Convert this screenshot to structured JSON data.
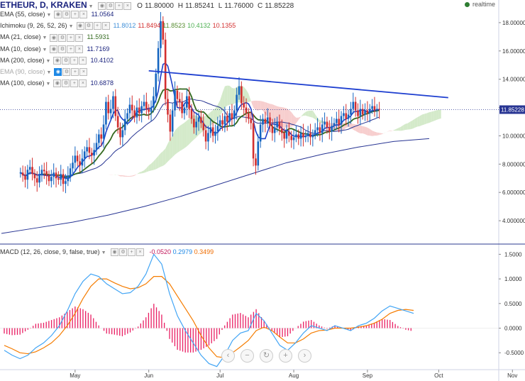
{
  "header": {
    "symbol": "ETHEUR, D, KRAKEN",
    "ohlc": {
      "o_label": "O",
      "o": "11.80000",
      "h_label": "H",
      "h": "11.85241",
      "l_label": "L",
      "l": "11.76000",
      "c_label": "C",
      "c": "11.85228"
    },
    "realtime": "realtime"
  },
  "indicators": [
    {
      "name": "EMA (55, close)",
      "values": [
        "11.0564"
      ],
      "colors": [
        "#1a237e"
      ]
    },
    {
      "name": "Ichimoku (9, 26, 52, 26)",
      "values": [
        "11.8012",
        "11.8494",
        "11.8523",
        "10.4132",
        "10.1355"
      ],
      "colors": [
        "#3f8fd8",
        "#d32f2f",
        "#558b2f",
        "#4caf50",
        "#d32f2f"
      ]
    },
    {
      "name": "MA (21, close)",
      "values": [
        "11.5931"
      ],
      "colors": [
        "#33691e"
      ]
    },
    {
      "name": "MA (10, close)",
      "values": [
        "11.7169"
      ],
      "colors": [
        "#1a237e"
      ]
    },
    {
      "name": "MA (200, close)",
      "values": [
        "10.4102"
      ],
      "colors": [
        "#1a237e"
      ]
    },
    {
      "name": "EMA (90, close)",
      "values": [],
      "colors": [],
      "hidden": true
    },
    {
      "name": "MA (100, close)",
      "values": [
        "10.6878"
      ],
      "colors": [
        "#1a237e"
      ]
    }
  ],
  "macd": {
    "name": "MACD (12, 26, close, 9, false, true)",
    "values": [
      "-0.0520",
      "0.2979",
      "0.3499"
    ],
    "colors": [
      "#c2185b",
      "#1e88e5",
      "#ef6c00"
    ]
  },
  "colors": {
    "up": "#1565c0",
    "down": "#d32f2f",
    "cloud_bull": "#cfe8c4",
    "cloud_bear": "#f6c9c9",
    "macd_line": "#42a5f5",
    "signal_line": "#f57c00",
    "hist": "#e91e63",
    "trendline": "#1e3fd0",
    "ma": "#283593",
    "ma21": "#33691e",
    "last_price_bg": "#283593",
    "divider": "#2b3a8f"
  },
  "nav_icons": [
    "chevron-left-icon",
    "zoom-out-icon",
    "reset-icon",
    "zoom-in-icon",
    "chevron-right-icon"
  ],
  "chart_data": {
    "type": "candlestick",
    "instrument": "ETHEUR",
    "x_tick_labels": [
      "May",
      "Jun",
      "Jul",
      "Aug",
      "Sep",
      "Oct",
      "Nov"
    ],
    "x_tick_days": [
      31,
      62,
      92,
      123,
      154,
      184,
      215
    ],
    "y_ticks": [
      "18.000000",
      "16.000000",
      "14.000000",
      "12.000000",
      "10.000000",
      "8.000000",
      "6.000000",
      "4.000000"
    ],
    "ylim": [
      2.4,
      19.4
    ],
    "last_price": "11.85228",
    "close": [
      7.4,
      7.2,
      6.9,
      7.6,
      7.8,
      7.3,
      7.0,
      6.7,
      7.2,
      7.6,
      7.5,
      7.2,
      6.8,
      7.1,
      7.4,
      7.0,
      6.9,
      7.3,
      6.6,
      6.8,
      7.2,
      7.7,
      8.1,
      8.6,
      8.2,
      7.9,
      8.4,
      8.9,
      9.2,
      8.8,
      8.6,
      9.0,
      9.5,
      10.1,
      9.8,
      10.8,
      12.4,
      11.6,
      11.9,
      12.8,
      11.4,
      10.6,
      9.9,
      10.4,
      11.2,
      11.6,
      12.2,
      11.8,
      11.3,
      12.0,
      11.6,
      12.1,
      12.4,
      11.9,
      11.7,
      12.0,
      12.8,
      14.4,
      16.2,
      18.1,
      16.8,
      12.6,
      11.5,
      10.3,
      11.8,
      13.2,
      12.6,
      12.4,
      11.6,
      12.0,
      12.8,
      11.9,
      11.2,
      10.6,
      11.0,
      11.3,
      10.9,
      10.4,
      9.6,
      10.2,
      10.6,
      10.0,
      10.3,
      10.7,
      11.1,
      10.8,
      11.4,
      11.0,
      11.6,
      11.2,
      11.8,
      12.9,
      13.5,
      12.3,
      12.0,
      11.6,
      11.2,
      10.9,
      8.4,
      7.9,
      9.6,
      10.8,
      11.2,
      10.9,
      11.3,
      10.7,
      10.2,
      10.6,
      11.0,
      10.5,
      10.2,
      9.8,
      10.3,
      10.0,
      9.7,
      9.9,
      10.1,
      9.8,
      10.2,
      9.9,
      10.0,
      10.2,
      9.9,
      10.1,
      10.4,
      10.6,
      10.2,
      10.8,
      11.0,
      10.6,
      10.3,
      10.7,
      10.9,
      11.2,
      10.8,
      11.4,
      11.6,
      11.2,
      11.5,
      11.9,
      12.4,
      11.8,
      11.4,
      11.9,
      11.5,
      11.8,
      11.6,
      11.9,
      12.1,
      11.8,
      11.9,
      11.85
    ],
    "ma_200": [
      3.1,
      3.5,
      3.9,
      4.4,
      5.0,
      5.7,
      6.5,
      7.3,
      8.1,
      8.7,
      9.2,
      9.6,
      9.8
    ],
    "ma_200_days": [
      0,
      15,
      30,
      45,
      60,
      75,
      90,
      105,
      120,
      135,
      150,
      165,
      180
    ],
    "trendline": {
      "from": {
        "day": 62,
        "value": 14.6
      },
      "to": {
        "day": 188,
        "value": 12.7
      }
    },
    "macd_panel": {
      "ylim": [
        -0.8,
        1.65
      ],
      "y_ticks": [
        "1.5000",
        "1.0000",
        "0.5000",
        "0.0000",
        "-0.5000"
      ],
      "macd": [
        -0.45,
        -0.55,
        -0.62,
        -0.55,
        -0.4,
        -0.3,
        -0.15,
        0.05,
        0.35,
        0.7,
        0.95,
        1.1,
        1.05,
        0.9,
        0.8,
        0.7,
        0.72,
        0.85,
        1.1,
        1.5,
        1.3,
        0.7,
        0.25,
        -0.05,
        -0.3,
        -0.55,
        -0.72,
        -0.78,
        -0.55,
        -0.25,
        -0.1,
        -0.05,
        0.3,
        0.15,
        -0.1,
        -0.35,
        -0.45,
        -0.3,
        -0.1,
        0.05,
        0.0,
        -0.05,
        0.05,
        0.0,
        -0.05,
        0.05,
        0.1,
        0.2,
        0.35,
        0.45,
        0.4,
        0.35,
        0.3
      ],
      "signal": [
        -0.35,
        -0.42,
        -0.5,
        -0.52,
        -0.48,
        -0.4,
        -0.3,
        -0.15,
        0.05,
        0.3,
        0.6,
        0.85,
        1.0,
        1.0,
        0.92,
        0.85,
        0.8,
        0.82,
        0.9,
        1.05,
        1.05,
        0.9,
        0.65,
        0.4,
        0.15,
        -0.15,
        -0.4,
        -0.58,
        -0.6,
        -0.5,
        -0.38,
        -0.25,
        -0.05,
        0.02,
        -0.05,
        -0.18,
        -0.3,
        -0.3,
        -0.22,
        -0.1,
        -0.05,
        -0.04,
        0.0,
        0.0,
        0.0,
        0.02,
        0.05,
        0.1,
        0.18,
        0.3,
        0.36,
        0.38,
        0.36
      ]
    }
  }
}
